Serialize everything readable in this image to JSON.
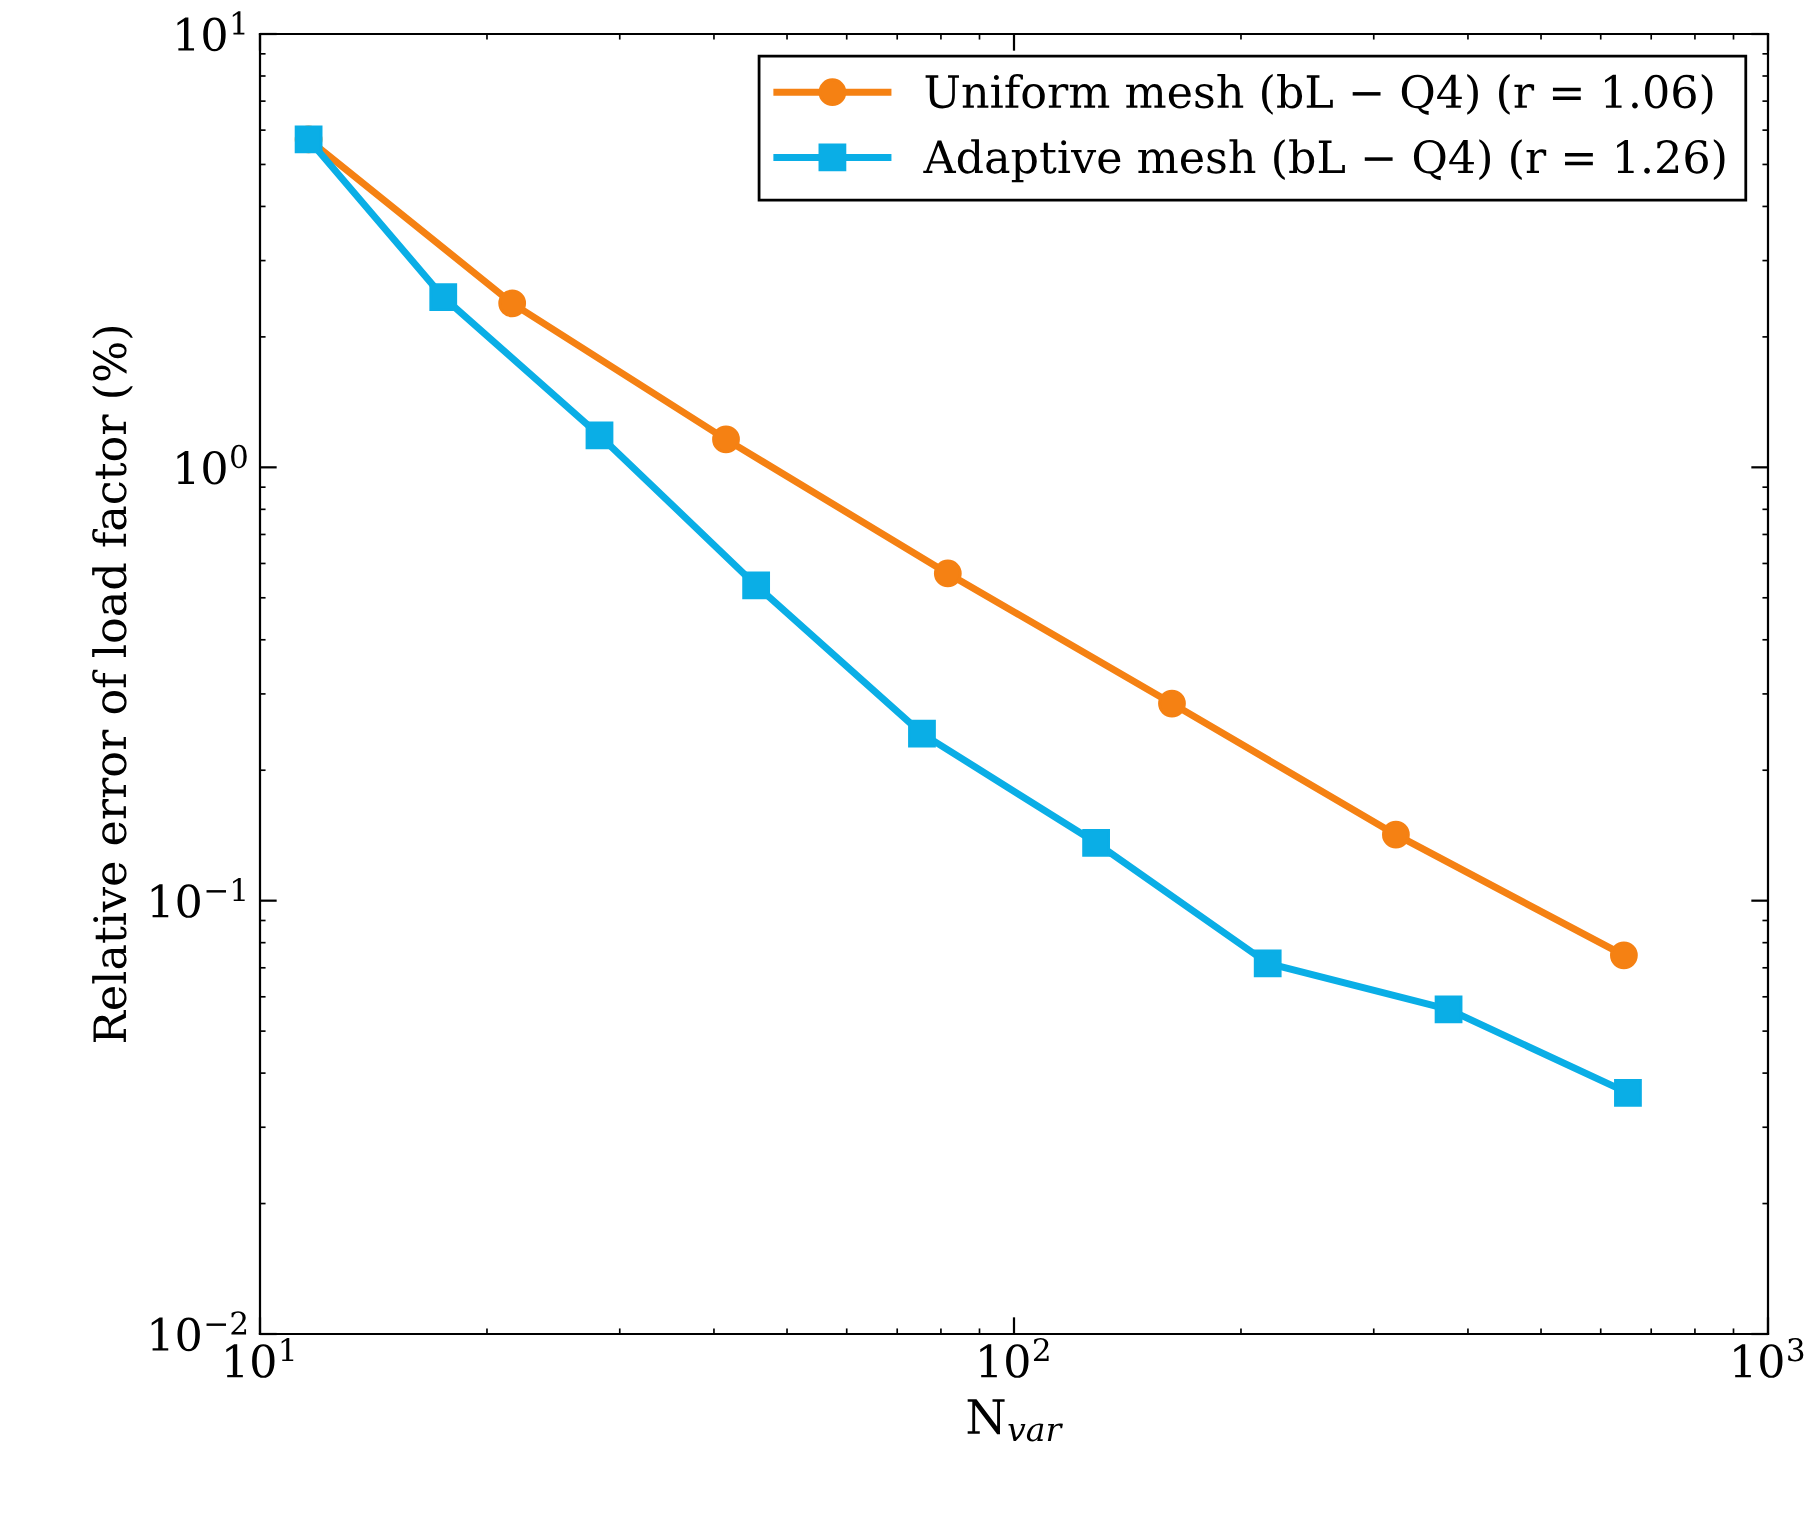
{
  "chart_data": {
    "type": "line",
    "xlabel": "N$_{var}$",
    "ylabel": "Relative error of load factor (%)",
    "log": "xy",
    "xlim": [
      10,
      1000
    ],
    "ylim": [
      0.01,
      10
    ],
    "xticks": [
      {
        "value": 10,
        "label": "10$^{1}$"
      },
      {
        "value": 100,
        "label": "10$^{2}$"
      },
      {
        "value": 1000,
        "label": "10$^{3}$"
      }
    ],
    "yticks": [
      {
        "value": 0.01,
        "label": "10$^{−2}$"
      },
      {
        "value": 0.1,
        "label": "10$^{−1}$"
      },
      {
        "value": 1,
        "label": "10$^{0}$"
      },
      {
        "value": 10,
        "label": "10$^{1}$"
      }
    ],
    "grid": false,
    "legend": "top right",
    "line_style": "solid",
    "series": [
      {
        "name": "Uniform mesh (bL − Q4) (r = 1.06)",
        "color": "#f58113",
        "marker": "circle",
        "x": [
          11.6,
          21.6,
          41.5,
          81.7,
          162,
          321,
          644
        ],
        "values": [
          5.71,
          2.39,
          1.16,
          0.569,
          0.285,
          0.142,
          0.0748
        ]
      },
      {
        "name": "Adaptive mesh (bL − Q4) (r = 1.26)",
        "color": "#0aaee6",
        "marker": "square",
        "x": [
          11.6,
          17.5,
          28.2,
          45.5,
          75.5,
          128.5,
          217,
          377,
          652
        ],
        "values": [
          5.71,
          2.47,
          1.185,
          0.534,
          0.243,
          0.136,
          0.0717,
          0.0561,
          0.036
        ]
      }
    ]
  }
}
